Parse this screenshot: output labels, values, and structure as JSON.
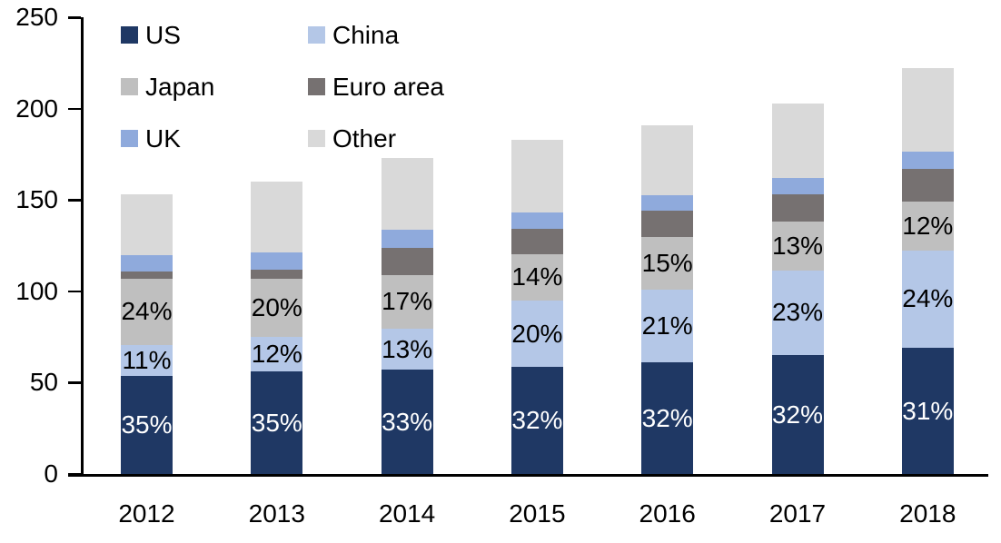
{
  "chart_data": {
    "type": "bar",
    "subtype": "stacked",
    "title": "",
    "xlabel": "",
    "ylabel": "",
    "categories": [
      "2012",
      "2013",
      "2014",
      "2015",
      "2016",
      "2017",
      "2018"
    ],
    "totals": [
      153,
      160,
      173,
      183,
      191,
      203,
      222
    ],
    "series": [
      {
        "name": "US",
        "color": "#1f3864",
        "values": [
          53.5,
          56,
          57,
          58.5,
          61,
          65,
          69
        ],
        "labels": [
          "35%",
          "35%",
          "33%",
          "32%",
          "32%",
          "32%",
          "31%"
        ],
        "label_color": "#ffffff"
      },
      {
        "name": "China",
        "color": "#b4c7e7",
        "values": [
          17,
          19,
          22.5,
          36.5,
          40,
          46.5,
          53.5
        ],
        "labels": [
          "11%",
          "12%",
          "13%",
          "20%",
          "21%",
          "23%",
          "24%"
        ],
        "label_color": "#000000"
      },
      {
        "name": "Japan",
        "color": "#bfbfbf",
        "values": [
          36.5,
          32,
          29.5,
          25.5,
          28.5,
          26.5,
          26.5
        ],
        "labels": [
          "24%",
          "20%",
          "17%",
          "14%",
          "15%",
          "13%",
          "12%"
        ],
        "label_color": "#000000"
      },
      {
        "name": "Euro area",
        "color": "#767171",
        "values": [
          4,
          5,
          15,
          13.5,
          14.5,
          15,
          18
        ],
        "labels": null,
        "label_color": null
      },
      {
        "name": "UK",
        "color": "#8faadc",
        "values": [
          9,
          9.5,
          9.5,
          9,
          8.5,
          9,
          9.5
        ],
        "labels": null,
        "label_color": null
      },
      {
        "name": "Other",
        "color": "#d9d9d9",
        "values": [
          33,
          38.5,
          39.5,
          40,
          38.5,
          41,
          45.5
        ],
        "labels": null,
        "label_color": null
      }
    ],
    "ylim": [
      0,
      250
    ],
    "yticks": [
      "0",
      "50",
      "100",
      "150",
      "200",
      "250"
    ],
    "grid": "off",
    "legend": {
      "position": "top-left-inside",
      "columns": 2,
      "items": [
        {
          "label": "US",
          "color": "#1f3864"
        },
        {
          "label": "China",
          "color": "#b4c7e7"
        },
        {
          "label": "Japan",
          "color": "#bfbfbf"
        },
        {
          "label": "Euro area",
          "color": "#767171"
        },
        {
          "label": "UK",
          "color": "#8faadc"
        },
        {
          "label": "Other",
          "color": "#d9d9d9"
        }
      ]
    }
  }
}
